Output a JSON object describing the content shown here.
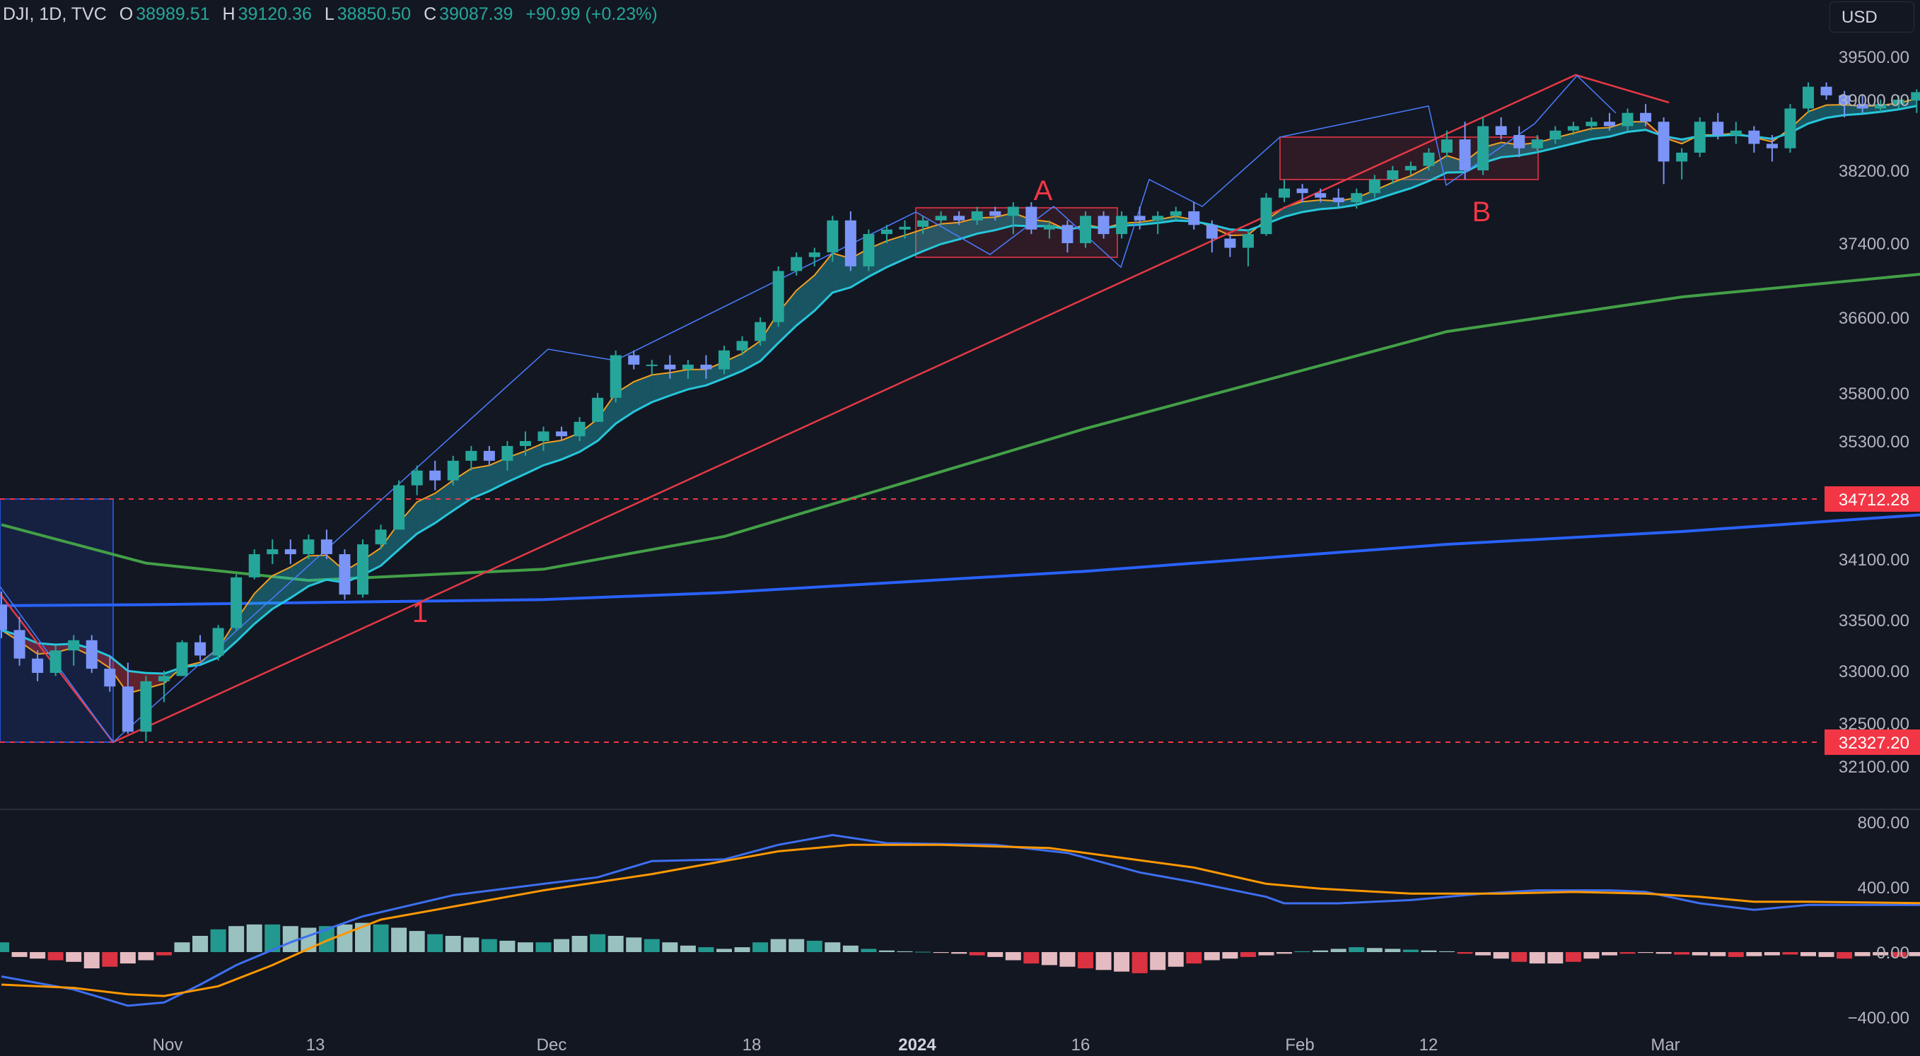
{
  "header": {
    "symbol": "DJI, 1D, TVC",
    "open_label": "O",
    "open": "38989.51",
    "high_label": "H",
    "high": "39120.36",
    "low_label": "L",
    "low": "38850.50",
    "close_label": "C",
    "close": "39087.39",
    "change": "+90.99 (+0.23%)"
  },
  "currency_button": "USD",
  "colors": {
    "background": "#131722",
    "up": "#26a69a",
    "down": "#7b94f7",
    "ema_fast": "#f0a020",
    "ema_slow": "#26c6da",
    "ma_100": "#43a047",
    "ma_200": "#2962ff",
    "trendline": "#e53945",
    "price_line": "#f23645",
    "macd_line": "#3d6ff0",
    "signal_line": "#ff9800"
  },
  "chart_data": {
    "type": "candlestick",
    "price_axis": {
      "ticks": [
        "39500.00",
        "39000.00",
        "38200.00",
        "37400.00",
        "36600.00",
        "35800.00",
        "35300.00",
        "34100.00",
        "33500.00",
        "33000.00",
        "32500.00",
        "32100.00"
      ],
      "badges": [
        "34712.28",
        "32327.20"
      ]
    },
    "time_axis": [
      "Nov",
      "13",
      "Dec",
      "18",
      "2024",
      "16",
      "Feb",
      "12",
      "Mar"
    ],
    "annotations": [
      "A",
      "B",
      "1"
    ],
    "candles": [
      [
        33650,
        33780,
        33320,
        33400
      ],
      [
        33400,
        33530,
        33050,
        33120
      ],
      [
        33120,
        33200,
        32900,
        32980
      ],
      [
        32980,
        33250,
        32950,
        33200
      ],
      [
        33200,
        33350,
        33050,
        33300
      ],
      [
        33300,
        33350,
        32980,
        33020
      ],
      [
        33020,
        33150,
        32800,
        32850
      ],
      [
        32850,
        33080,
        32400,
        32420
      ],
      [
        32420,
        32950,
        32327,
        32900
      ],
      [
        32900,
        33000,
        32700,
        32950
      ],
      [
        32950,
        33300,
        32950,
        33280
      ],
      [
        33280,
        33350,
        33100,
        33150
      ],
      [
        33150,
        33450,
        33100,
        33420
      ],
      [
        33420,
        33950,
        33400,
        33920
      ],
      [
        33920,
        34200,
        33900,
        34150
      ],
      [
        34150,
        34300,
        34050,
        34200
      ],
      [
        34200,
        34300,
        34050,
        34150
      ],
      [
        34150,
        34350,
        34100,
        34300
      ],
      [
        34300,
        34400,
        34100,
        34150
      ],
      [
        34150,
        34200,
        33700,
        33750
      ],
      [
        33750,
        34300,
        33720,
        34250
      ],
      [
        34250,
        34450,
        34200,
        34400
      ],
      [
        34400,
        34900,
        34400,
        34850
      ],
      [
        34850,
        35050,
        34750,
        35000
      ],
      [
        35000,
        35100,
        34800,
        34900
      ],
      [
        34900,
        35150,
        34850,
        35100
      ],
      [
        35100,
        35250,
        35000,
        35200
      ],
      [
        35200,
        35250,
        35050,
        35100
      ],
      [
        35100,
        35300,
        35000,
        35250
      ],
      [
        35250,
        35400,
        35150,
        35300
      ],
      [
        35300,
        35450,
        35200,
        35400
      ],
      [
        35400,
        35450,
        35300,
        35350
      ],
      [
        35350,
        35550,
        35300,
        35500
      ],
      [
        35500,
        35800,
        35500,
        35750
      ],
      [
        35750,
        36250,
        35700,
        36200
      ],
      [
        36200,
        36250,
        36050,
        36100
      ],
      [
        36100,
        36150,
        36000,
        36100
      ],
      [
        36100,
        36200,
        35950,
        36050
      ],
      [
        36050,
        36150,
        35950,
        36100
      ],
      [
        36100,
        36200,
        35950,
        36050
      ],
      [
        36050,
        36300,
        36000,
        36250
      ],
      [
        36250,
        36400,
        36200,
        36350
      ],
      [
        36350,
        36600,
        36300,
        36550
      ],
      [
        36550,
        37150,
        36500,
        37100
      ],
      [
        37100,
        37300,
        37050,
        37250
      ],
      [
        37250,
        37350,
        37150,
        37300
      ],
      [
        37300,
        37700,
        37200,
        37650
      ],
      [
        37650,
        37750,
        37100,
        37150
      ],
      [
        37150,
        37550,
        37100,
        37500
      ],
      [
        37500,
        37600,
        37400,
        37550
      ],
      [
        37550,
        37650,
        37450,
        37580
      ],
      [
        37580,
        37700,
        37500,
        37650
      ],
      [
        37650,
        37750,
        37600,
        37700
      ],
      [
        37700,
        37750,
        37600,
        37650
      ],
      [
        37650,
        37800,
        37600,
        37750
      ],
      [
        37750,
        37800,
        37650,
        37700
      ],
      [
        37700,
        37850,
        37500,
        37800
      ],
      [
        37800,
        37850,
        37500,
        37550
      ],
      [
        37550,
        37650,
        37450,
        37600
      ],
      [
        37600,
        37650,
        37300,
        37400
      ],
      [
        37400,
        37750,
        37350,
        37700
      ],
      [
        37700,
        37750,
        37450,
        37500
      ],
      [
        37500,
        37750,
        37450,
        37700
      ],
      [
        37700,
        37800,
        37550,
        37650
      ],
      [
        37650,
        37750,
        37500,
        37700
      ],
      [
        37700,
        37800,
        37650,
        37750
      ],
      [
        37750,
        37850,
        37550,
        37600
      ],
      [
        37600,
        37650,
        37300,
        37450
      ],
      [
        37450,
        37500,
        37250,
        37350
      ],
      [
        37350,
        37550,
        37150,
        37500
      ],
      [
        37500,
        37950,
        37480,
        37900
      ],
      [
        37900,
        38100,
        37850,
        38000
      ],
      [
        38000,
        38050,
        37850,
        37950
      ],
      [
        37950,
        38000,
        37850,
        37900
      ],
      [
        37900,
        38000,
        37800,
        37850
      ],
      [
        37850,
        38000,
        37780,
        37950
      ],
      [
        37950,
        38150,
        37900,
        38100
      ],
      [
        38100,
        38250,
        38050,
        38200
      ],
      [
        38200,
        38300,
        38150,
        38250
      ],
      [
        38250,
        38450,
        38200,
        38400
      ],
      [
        38400,
        38650,
        38350,
        38550
      ],
      [
        38550,
        38750,
        38100,
        38200
      ],
      [
        38200,
        38800,
        38150,
        38700
      ],
      [
        38700,
        38800,
        38550,
        38600
      ],
      [
        38600,
        38700,
        38350,
        38450
      ],
      [
        38450,
        38600,
        38400,
        38550
      ],
      [
        38550,
        38700,
        38500,
        38650
      ],
      [
        38650,
        38750,
        38600,
        38700
      ],
      [
        38700,
        38800,
        38650,
        38750
      ],
      [
        38750,
        38850,
        38650,
        38700
      ],
      [
        38700,
        38900,
        38650,
        38850
      ],
      [
        38850,
        38950,
        38700,
        38750
      ],
      [
        38750,
        38800,
        38050,
        38300
      ],
      [
        38300,
        38450,
        38100,
        38400
      ],
      [
        38400,
        38800,
        38350,
        38750
      ],
      [
        38750,
        38850,
        38550,
        38600
      ],
      [
        38600,
        38750,
        38500,
        38650
      ],
      [
        38650,
        38700,
        38400,
        38500
      ],
      [
        38500,
        38600,
        38300,
        38450
      ],
      [
        38450,
        38950,
        38400,
        38900
      ],
      [
        38900,
        39200,
        38850,
        39150
      ],
      [
        39150,
        39200,
        39000,
        39050
      ],
      [
        39050,
        39100,
        38800,
        38950
      ],
      [
        38950,
        39050,
        38850,
        38900
      ],
      [
        38900,
        39000,
        38850,
        38950
      ],
      [
        38950,
        39050,
        38900,
        39000
      ],
      [
        38990,
        39120,
        38850,
        39087
      ]
    ],
    "ma_100": [
      [
        0,
        34450
      ],
      [
        8,
        34060
      ],
      [
        17,
        33890
      ],
      [
        30,
        34000
      ],
      [
        40,
        34330
      ],
      [
        60,
        35430
      ],
      [
        80,
        36450
      ],
      [
        93,
        36820
      ],
      [
        107,
        37080
      ]
    ],
    "ma_200": [
      [
        0,
        33640
      ],
      [
        8,
        33650
      ],
      [
        30,
        33700
      ],
      [
        40,
        33770
      ],
      [
        60,
        33980
      ],
      [
        80,
        34250
      ],
      [
        93,
        34380
      ],
      [
        107,
        34560
      ]
    ],
    "macd": {
      "ticks": [
        "800.00",
        "400.00",
        "0.00",
        "−400.00"
      ],
      "macd": [
        [
          0,
          -150
        ],
        [
          4,
          -230
        ],
        [
          7,
          -330
        ],
        [
          9,
          -310
        ],
        [
          11,
          -200
        ],
        [
          13,
          -80
        ],
        [
          16,
          60
        ],
        [
          20,
          220
        ],
        [
          25,
          350
        ],
        [
          30,
          420
        ],
        [
          33,
          460
        ],
        [
          36,
          560
        ],
        [
          40,
          570
        ],
        [
          43,
          660
        ],
        [
          46,
          720
        ],
        [
          49,
          670
        ],
        [
          55,
          660
        ],
        [
          59,
          610
        ],
        [
          63,
          490
        ],
        [
          66,
          430
        ],
        [
          70,
          340
        ],
        [
          71,
          300
        ],
        [
          74,
          300
        ],
        [
          78,
          320
        ],
        [
          82,
          360
        ],
        [
          85,
          380
        ],
        [
          89,
          380
        ],
        [
          91,
          370
        ],
        [
          94,
          300
        ],
        [
          97,
          260
        ],
        [
          100,
          290
        ],
        [
          107,
          290
        ]
      ],
      "signal": [
        [
          0,
          -200
        ],
        [
          4,
          -220
        ],
        [
          7,
          -260
        ],
        [
          9,
          -270
        ],
        [
          12,
          -210
        ],
        [
          15,
          -80
        ],
        [
          18,
          70
        ],
        [
          21,
          200
        ],
        [
          25,
          280
        ],
        [
          30,
          380
        ],
        [
          33,
          430
        ],
        [
          36,
          480
        ],
        [
          40,
          560
        ],
        [
          43,
          620
        ],
        [
          47,
          660
        ],
        [
          52,
          660
        ],
        [
          58,
          640
        ],
        [
          62,
          580
        ],
        [
          66,
          520
        ],
        [
          70,
          420
        ],
        [
          73,
          390
        ],
        [
          78,
          360
        ],
        [
          83,
          360
        ],
        [
          87,
          370
        ],
        [
          91,
          360
        ],
        [
          94,
          340
        ],
        [
          97,
          310
        ],
        [
          100,
          310
        ],
        [
          107,
          300
        ]
      ],
      "histogram": [
        60,
        -30,
        -40,
        -50,
        -60,
        -100,
        -90,
        -70,
        -50,
        -20,
        60,
        100,
        140,
        160,
        170,
        170,
        160,
        150,
        160,
        170,
        180,
        170,
        150,
        130,
        110,
        100,
        90,
        80,
        70,
        60,
        60,
        80,
        100,
        110,
        100,
        90,
        80,
        60,
        40,
        30,
        20,
        30,
        60,
        80,
        80,
        70,
        60,
        40,
        20,
        10,
        5,
        2,
        -5,
        -10,
        -20,
        -30,
        -50,
        -70,
        -80,
        -90,
        -100,
        -110,
        -120,
        -130,
        -110,
        -90,
        -70,
        -50,
        -40,
        -30,
        -20,
        -10,
        5,
        10,
        20,
        30,
        25,
        20,
        15,
        10,
        5,
        -10,
        -20,
        -40,
        -60,
        -70,
        -70,
        -60,
        -40,
        -20,
        -10,
        -5,
        -10,
        -15,
        -20,
        -25,
        -30,
        -25,
        -20,
        -15,
        -25,
        -30,
        -40,
        -25,
        -20,
        -30,
        -25
      ]
    }
  }
}
